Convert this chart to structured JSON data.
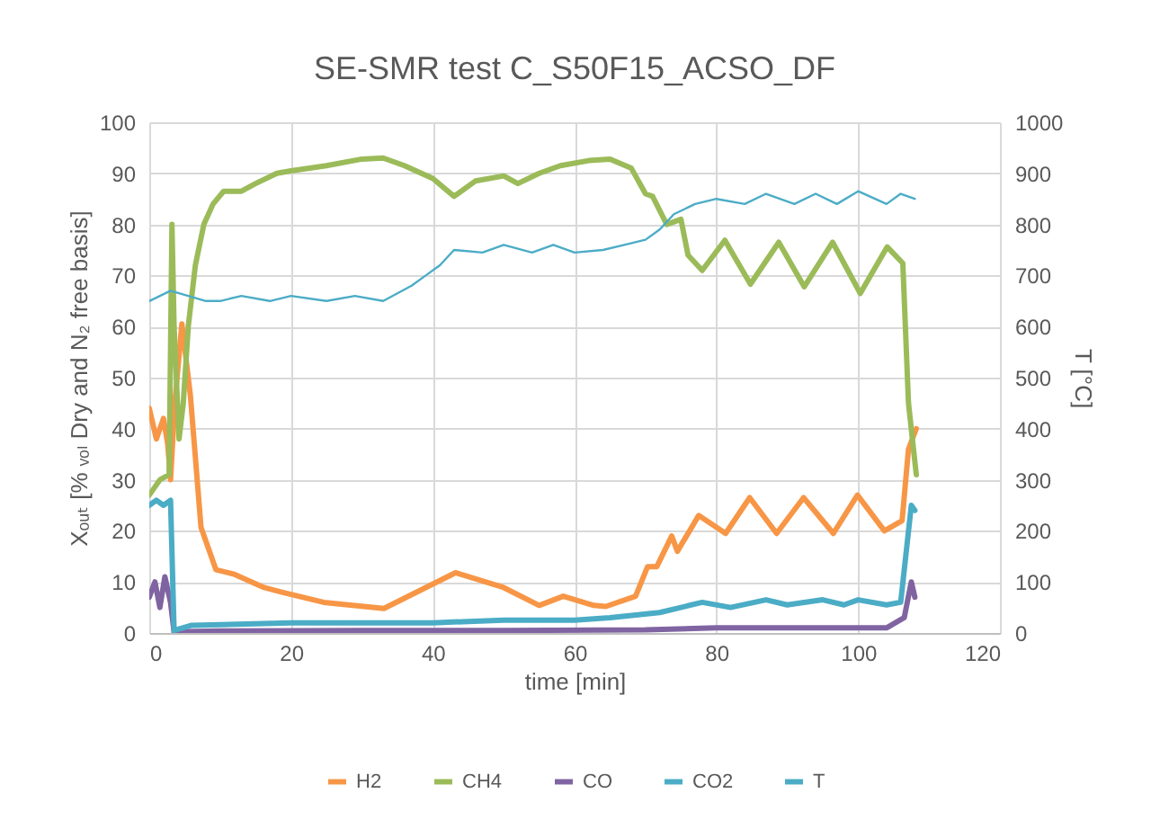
{
  "chart_data": {
    "type": "line",
    "title": "SE-SMR test C_S50F15_ACSO_DF",
    "xlabel": "time [min]",
    "ylabel": "Xₒᵤₜ [% ᵥₒₗ Dry and N₂ free basis]",
    "y2label": "T [°C]",
    "xlim": [
      0,
      120
    ],
    "xticks": [
      0,
      20,
      40,
      60,
      80,
      100,
      120
    ],
    "ylim": [
      0,
      100
    ],
    "yticks": [
      0,
      10,
      20,
      30,
      40,
      50,
      60,
      70,
      80,
      90,
      100
    ],
    "y2lim": [
      0,
      1000
    ],
    "y2ticks": [
      0,
      100,
      200,
      300,
      400,
      500,
      600,
      700,
      800,
      900,
      1000
    ],
    "grid": true,
    "legend": "bottom",
    "line_style": "solid",
    "marker": "none",
    "series": [
      {
        "name": "H2",
        "color": "#f79646",
        "x": [
          0,
          1,
          2,
          2.6,
          3,
          3.6,
          4.6,
          5.8,
          7.3,
          9.4,
          12,
          16.2,
          18.7,
          24.6,
          33.1,
          39,
          43.2,
          50,
          55,
          58.4,
          62.7,
          64.4,
          68.6,
          70.3,
          71.6,
          73.7,
          74.5,
          77.5,
          81.3,
          84.7,
          88.5,
          92.3,
          96.5,
          99.9,
          103.7,
          106.2,
          107.1,
          108.2
        ],
        "values": [
          44,
          38,
          42,
          37,
          30,
          45,
          60.5,
          46.5,
          20.7,
          12.4,
          11.5,
          8.9,
          8,
          6,
          4.8,
          8.9,
          11.8,
          8.9,
          5.4,
          7.2,
          5.4,
          5.2,
          7.2,
          13,
          13,
          19,
          16,
          23,
          19.5,
          26.5,
          19.5,
          26.5,
          19.5,
          27,
          20,
          22,
          36,
          40
        ]
      },
      {
        "name": "CH4",
        "color": "#9bbb59",
        "x": [
          0,
          1.5,
          2.8,
          3.2,
          3.5,
          4.2,
          4.8,
          5.5,
          6.5,
          7.7,
          9,
          10.5,
          13,
          15,
          18,
          20,
          25,
          30,
          33,
          36,
          40,
          43,
          46,
          50,
          52,
          55,
          58,
          62,
          65,
          68,
          70,
          71,
          73,
          75,
          76,
          78,
          81.2,
          84.8,
          88.8,
          92.4,
          96.4,
          100.3,
          104.1,
          106.3,
          107.1,
          108.2
        ],
        "values": [
          27,
          30,
          31,
          80,
          60,
          38,
          45,
          60,
          72,
          80,
          84,
          86.5,
          86.5,
          88,
          90,
          90.5,
          91.5,
          92.8,
          93,
          91.5,
          89,
          85.5,
          88.5,
          89.5,
          88,
          90,
          91.5,
          92.5,
          92.8,
          91,
          86,
          85.5,
          80,
          81,
          74,
          71,
          76.9,
          68.3,
          76.5,
          67.8,
          76.5,
          66.5,
          75.6,
          72.4,
          45,
          31
        ]
      },
      {
        "name": "CO",
        "color": "#8064a2",
        "x": [
          0,
          0.8,
          1.5,
          2.2,
          3,
          3.5,
          10,
          30,
          50,
          70,
          80,
          90,
          104,
          106.5,
          107.5,
          108
        ],
        "values": [
          7,
          10,
          5,
          11,
          6,
          0.2,
          0.4,
          0.5,
          0.5,
          0.6,
          1,
          1,
          1,
          3,
          10,
          7
        ]
      },
      {
        "name": "CO2",
        "color": "#4bacc6",
        "x": [
          0,
          1,
          2,
          3,
          3.5,
          6,
          20,
          40,
          50,
          60,
          65,
          72,
          78,
          82,
          87,
          90,
          95,
          98,
          100,
          104,
          106,
          107.5,
          108
        ],
        "values": [
          25,
          26,
          25,
          26,
          0.5,
          1.5,
          2,
          2,
          2.5,
          2.5,
          3,
          4,
          6,
          5,
          6.5,
          5.5,
          6.5,
          5.5,
          6.5,
          5.5,
          6,
          25,
          24
        ]
      },
      {
        "name": "T",
        "color": "#4bacc6",
        "axis": "y2",
        "x": [
          0,
          3,
          8,
          10,
          13,
          17,
          20,
          25,
          29,
          33,
          37,
          39,
          41,
          43,
          47,
          50,
          54,
          57,
          60,
          64,
          67,
          70,
          72,
          74,
          77,
          80,
          84,
          87,
          91,
          94,
          97,
          100,
          104,
          106,
          108
        ],
        "values": [
          650,
          670,
          650,
          650,
          660,
          650,
          660,
          650,
          660,
          650,
          680,
          700,
          720,
          750,
          745,
          760,
          745,
          760,
          745,
          750,
          760,
          770,
          790,
          820,
          840,
          850,
          840,
          860,
          840,
          860,
          840,
          865,
          840,
          860,
          850
        ]
      }
    ]
  }
}
